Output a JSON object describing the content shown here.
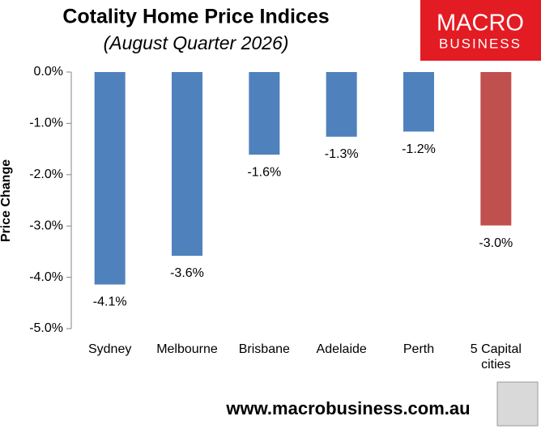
{
  "chart_data": {
    "type": "bar",
    "title": "Cotality Home Price Indices",
    "subtitle": "(August Quarter 2026)",
    "y_label": "Price Change",
    "categories": [
      "Sydney",
      "Melbourne",
      "Brisbane",
      "Adelaide",
      "Perth",
      "5 Capital cities"
    ],
    "values": [
      -4.14,
      -3.58,
      -1.61,
      -1.26,
      -1.16,
      -2.99
    ],
    "value_labels": [
      "-4.1%",
      "-3.6%",
      "-1.6%",
      "-1.3%",
      "-1.2%",
      "-3.0%"
    ],
    "colors": [
      "#4f81bd",
      "#4f81bd",
      "#4f81bd",
      "#4f81bd",
      "#4f81bd",
      "#c0504d"
    ],
    "ylim": [
      -5,
      0
    ],
    "yticks": [
      {
        "value": 0,
        "label": "0.0%"
      },
      {
        "value": -1,
        "label": "-1.0%"
      },
      {
        "value": -2,
        "label": "-2.0%"
      },
      {
        "value": -3,
        "label": "-3.0%"
      },
      {
        "value": -4,
        "label": "-4.0%"
      },
      {
        "value": -5,
        "label": "-5.0%"
      }
    ],
    "grid": false,
    "logo": {
      "line1": "MACRO",
      "line2": "BUSINESS"
    },
    "footer": "www.macrobusiness.com.au"
  }
}
